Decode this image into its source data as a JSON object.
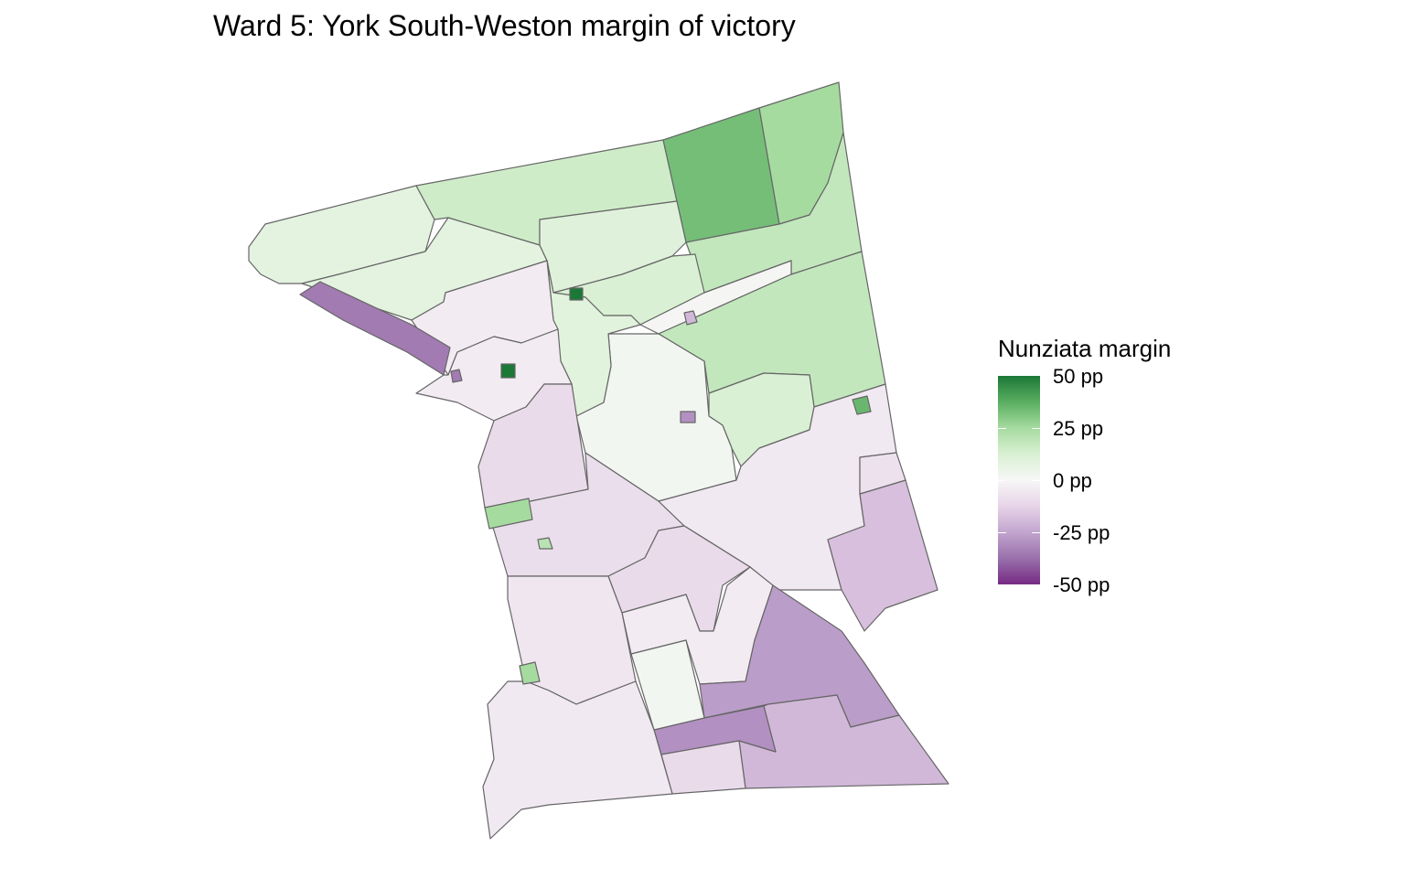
{
  "title": "Ward 5: York South-Weston margin of victory",
  "legend": {
    "title": "Nunziata margin",
    "ticks": [
      "50 pp",
      "25 pp",
      "0 pp",
      "-25 pp",
      "-50 pp"
    ],
    "tick_values": [
      50,
      25,
      0,
      -25,
      -50
    ],
    "limits": [
      -50,
      50
    ],
    "palette": [
      "#762a83",
      "#9970ab",
      "#c2a5cf",
      "#e7d4e8",
      "#f7f7f7",
      "#d9f0d3",
      "#a6dba0",
      "#5aae61",
      "#1b7837"
    ]
  },
  "map": {
    "boundary_color": "#666666",
    "precincts": [
      {
        "margin_pp": 8
      },
      {
        "margin_pp": 15
      },
      {
        "margin_pp": 33
      },
      {
        "margin_pp": 25
      },
      {
        "margin_pp": 18
      },
      {
        "margin_pp": 8
      },
      {
        "margin_pp": 10
      },
      {
        "margin_pp": 12
      },
      {
        "margin_pp": 1
      },
      {
        "margin_pp": 18
      },
      {
        "margin_pp": 12
      },
      {
        "margin_pp": 2
      },
      {
        "margin_pp": 9
      },
      {
        "margin_pp": -4
      },
      {
        "margin_pp": -35
      },
      {
        "margin_pp": -4
      },
      {
        "margin_pp": -10
      },
      {
        "margin_pp": -9
      },
      {
        "margin_pp": -5
      },
      {
        "margin_pp": -18
      },
      {
        "margin_pp": -8
      },
      {
        "margin_pp": -10
      },
      {
        "margin_pp": -4
      },
      {
        "margin_pp": -27
      },
      {
        "margin_pp": -20
      },
      {
        "margin_pp": -30
      },
      {
        "margin_pp": -10
      },
      {
        "margin_pp": 2
      },
      {
        "margin_pp": -6
      },
      {
        "margin_pp": -5
      },
      {
        "margin_pp": 25
      },
      {
        "margin_pp": 50
      },
      {
        "margin_pp": 50
      },
      {
        "margin_pp": 35
      },
      {
        "margin_pp": -30
      },
      {
        "margin_pp": -20
      },
      {
        "margin_pp": 25
      },
      {
        "margin_pp": 20
      },
      {
        "margin_pp": -35
      }
    ]
  }
}
